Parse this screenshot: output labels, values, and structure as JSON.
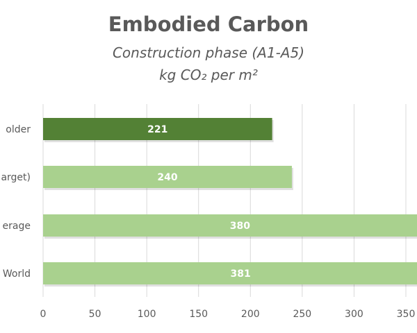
{
  "chart_data": {
    "type": "bar",
    "orientation": "horizontal",
    "title": "Embodied Carbon",
    "subtitle_line1": "Construction phase (A1-A5)",
    "subtitle_line2": "kg CO₂ per m²",
    "categories": [
      "older",
      "arget)",
      "erage",
      "World"
    ],
    "values": [
      221,
      240,
      380,
      381
    ],
    "data_labels": [
      "221",
      "240",
      "380",
      "381"
    ],
    "xlim": [
      0,
      360
    ],
    "x_ticks": [
      0,
      50,
      100,
      150,
      200,
      250,
      300,
      350
    ],
    "grid": true,
    "bar_colors": [
      "#538135",
      "#a9d18e",
      "#a9d18e",
      "#a9d18e"
    ]
  }
}
